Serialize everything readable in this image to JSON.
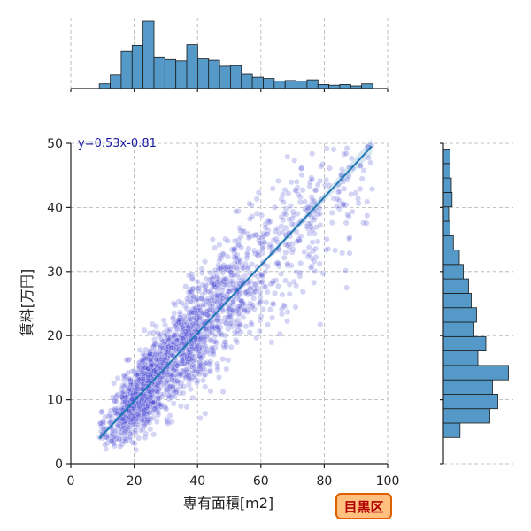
{
  "chart_data": {
    "type": "scatter",
    "title": "",
    "xlabel": "専有面積[m2]",
    "ylabel": "賃料[万円]",
    "xlim": [
      0,
      100
    ],
    "ylim": [
      0,
      50
    ],
    "x_ticks": [
      0,
      20,
      40,
      60,
      80,
      100
    ],
    "y_ticks": [
      0,
      10,
      20,
      30,
      40,
      50
    ],
    "grid": true,
    "regression": {
      "label": "y=0.53x-0.81",
      "slope": 0.53,
      "intercept": -0.81,
      "x_range": [
        9,
        95
      ]
    },
    "point_color": "#3a3ad0",
    "line_color": "#1f77b4",
    "hist_color": "#5599c8",
    "x_hist": {
      "bin_start": 9,
      "bin_width": 3.45,
      "relative_heights": [
        0.07,
        0.2,
        0.55,
        0.64,
        1.0,
        0.47,
        0.43,
        0.41,
        0.65,
        0.44,
        0.42,
        0.33,
        0.34,
        0.21,
        0.17,
        0.15,
        0.11,
        0.12,
        0.11,
        0.13,
        0.06,
        0.05,
        0.06,
        0.04,
        0.07
      ]
    },
    "y_hist": {
      "bin_start": 4.1,
      "bin_width": 2.25,
      "relative_widths": [
        0.25,
        0.7,
        0.82,
        0.74,
        0.98,
        0.52,
        0.64,
        0.46,
        0.5,
        0.42,
        0.38,
        0.3,
        0.24,
        0.15,
        0.1,
        0.08,
        0.13,
        0.12,
        0.1,
        0.1
      ]
    },
    "badge": {
      "text": "目黒区",
      "fill": "#ffc080",
      "stroke": "#e06000"
    }
  }
}
